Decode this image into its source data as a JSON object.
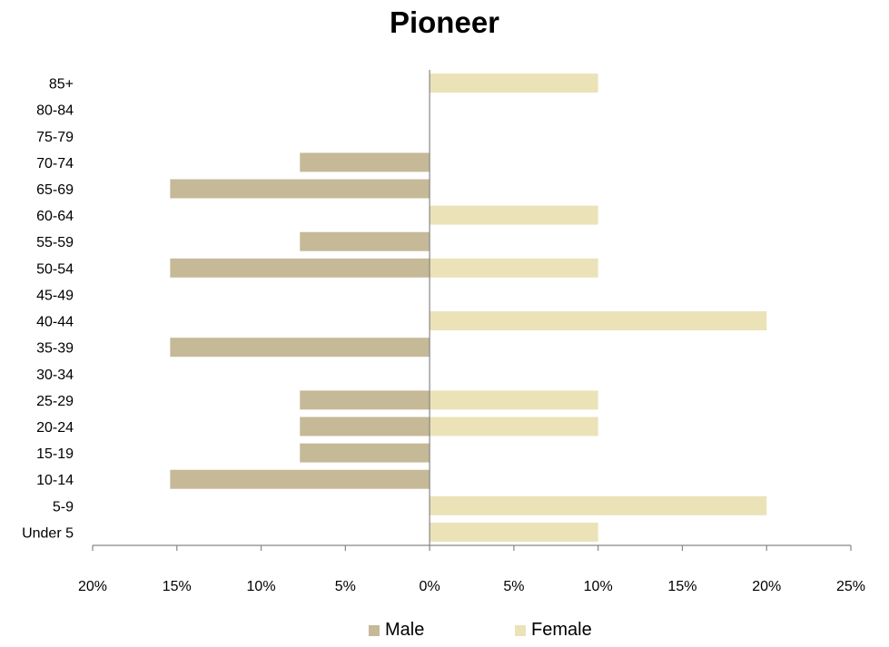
{
  "chart_data": {
    "type": "bar",
    "orientation": "horizontal",
    "title": "Pioneer",
    "categories": [
      "85+",
      "80-84",
      "75-79",
      "70-74",
      "65-69",
      "60-64",
      "55-59",
      "50-54",
      "45-49",
      "40-44",
      "35-39",
      "30-34",
      "25-29",
      "20-24",
      "15-19",
      "10-14",
      "5-9",
      "Under 5"
    ],
    "series": [
      {
        "name": "Male",
        "color": "#c5b997",
        "values": [
          0,
          0,
          0,
          7.7,
          15.4,
          0,
          7.7,
          15.4,
          0,
          0,
          15.4,
          0,
          7.7,
          7.7,
          7.7,
          15.4,
          0,
          0
        ]
      },
      {
        "name": "Female",
        "color": "#ebe2b8",
        "values": [
          10,
          0,
          0,
          0,
          0,
          10,
          0,
          10,
          0,
          20,
          0,
          0,
          10,
          10,
          0,
          0,
          20,
          10
        ]
      }
    ],
    "x_ticks": [
      "20%",
      "15%",
      "10%",
      "5%",
      "0%",
      "5%",
      "10%",
      "15%",
      "20%",
      "25%"
    ],
    "xlim": [
      -20,
      25
    ],
    "xlabel": "",
    "ylabel": "",
    "legend_position": "bottom",
    "grid": false
  }
}
